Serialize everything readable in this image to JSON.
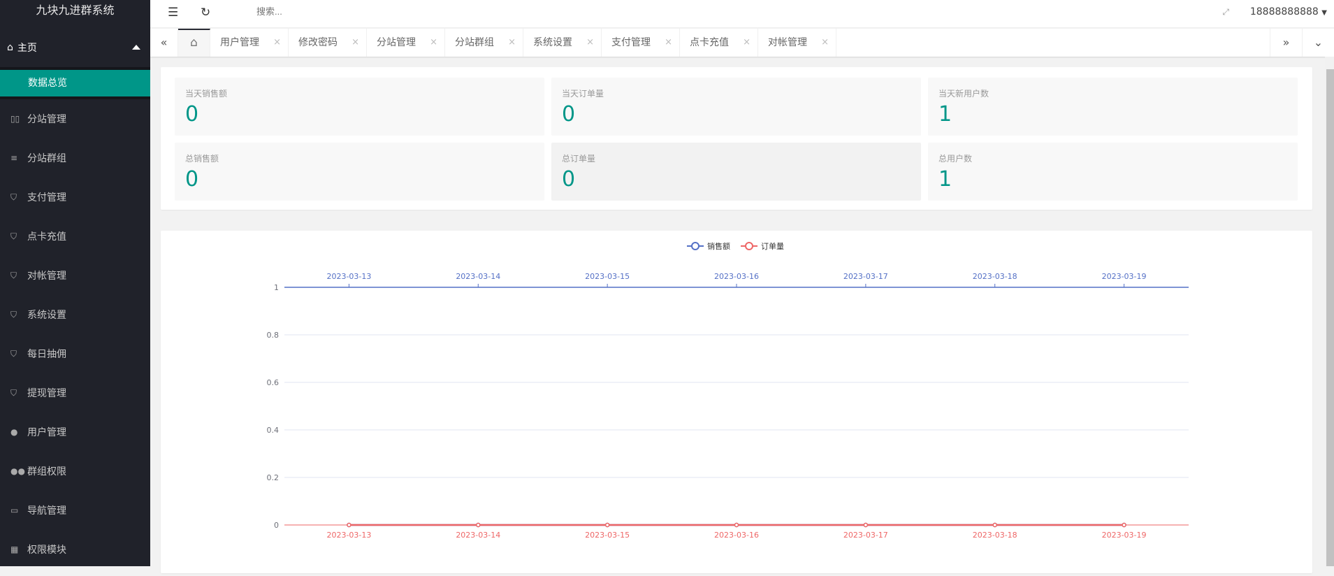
{
  "app_title": "九块九进群系统",
  "sidebar": {
    "home": "主页",
    "active_sub": "数据总览",
    "items": [
      {
        "label": "分站管理",
        "icon": "columns-icon"
      },
      {
        "label": "分站群组",
        "icon": "sliders-icon"
      },
      {
        "label": "支付管理",
        "icon": "shield-icon"
      },
      {
        "label": "点卡充值",
        "icon": "shield-icon"
      },
      {
        "label": "对帐管理",
        "icon": "shield-icon"
      },
      {
        "label": "系统设置",
        "icon": "shield-icon"
      },
      {
        "label": "每日抽佣",
        "icon": "shield-icon"
      },
      {
        "label": "提现管理",
        "icon": "shield-icon"
      },
      {
        "label": "用户管理",
        "icon": "user-icon"
      },
      {
        "label": "群组权限",
        "icon": "users-icon"
      },
      {
        "label": "导航管理",
        "icon": "nav-icon"
      },
      {
        "label": "权限模块",
        "icon": "grid-icon"
      }
    ]
  },
  "header": {
    "search_placeholder": "搜索...",
    "user": "18888888888"
  },
  "tabs": [
    "用户管理",
    "修改密码",
    "分站管理",
    "分站群组",
    "系统设置",
    "支付管理",
    "点卡充值",
    "对帐管理"
  ],
  "stats": [
    {
      "label": "当天销售额",
      "value": "0"
    },
    {
      "label": "当天订单量",
      "value": "0"
    },
    {
      "label": "当天新用户数",
      "value": "1"
    },
    {
      "label": "总销售额",
      "value": "0"
    },
    {
      "label": "总订单量",
      "value": "0"
    },
    {
      "label": "总用户数",
      "value": "1"
    }
  ],
  "colors": {
    "accent": "#009688",
    "sales": "#5470c6",
    "orders": "#ee6666"
  },
  "chart_data": {
    "type": "line",
    "legend_position": "top",
    "categories": [
      "2023-03-13",
      "2023-03-14",
      "2023-03-15",
      "2023-03-16",
      "2023-03-17",
      "2023-03-18",
      "2023-03-19"
    ],
    "series": [
      {
        "name": "销售额",
        "values": [
          0,
          0,
          0,
          0,
          0,
          0,
          0
        ]
      },
      {
        "name": "订单量",
        "values": [
          0,
          0,
          0,
          0,
          0,
          0,
          0
        ]
      }
    ],
    "yticks": [
      "0",
      "0.2",
      "0.4",
      "0.6",
      "0.8",
      "1"
    ],
    "ylim": [
      0,
      1
    ],
    "grid": true
  }
}
